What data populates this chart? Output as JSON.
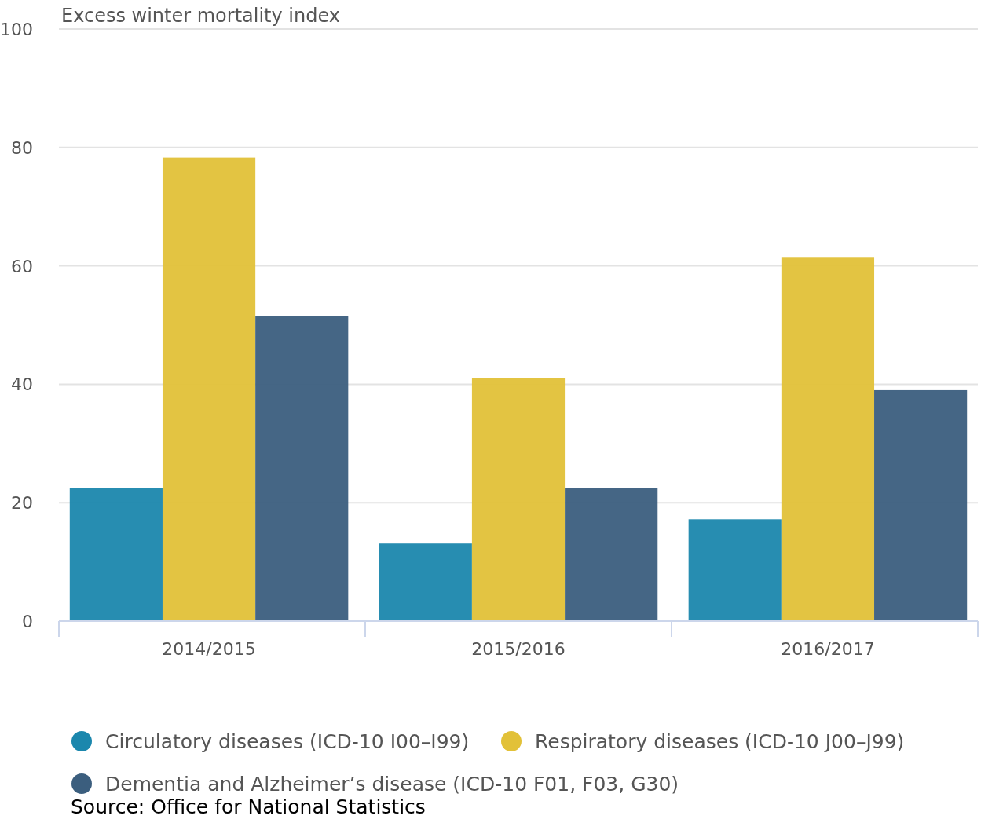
{
  "chart_data": {
    "type": "bar",
    "ylabel": "Excess winter mortality index",
    "categories": [
      "2014/2015",
      "2015/2016",
      "2016/2017"
    ],
    "series": [
      {
        "name": "Circulatory diseases (ICD-10 I00–I99)",
        "color": "#1b87ad",
        "values": [
          22.5,
          13.1,
          17.2
        ]
      },
      {
        "name": "Respiratory diseases (ICD-10 J00–J99)",
        "color": "#e2c138",
        "values": [
          78.3,
          41.0,
          61.5
        ]
      },
      {
        "name": "Dementia and Alzheimer’s disease (ICD-10 F01, F03, G30)",
        "color": "#3b5e7e",
        "values": [
          51.5,
          22.5,
          39.0
        ]
      }
    ],
    "ylim": [
      0,
      100
    ],
    "yticks": [
      0,
      20,
      40,
      60,
      80,
      100
    ],
    "grid": "y",
    "legend": "bottom",
    "annotations": [
      "Source: Office for National Statistics"
    ]
  }
}
